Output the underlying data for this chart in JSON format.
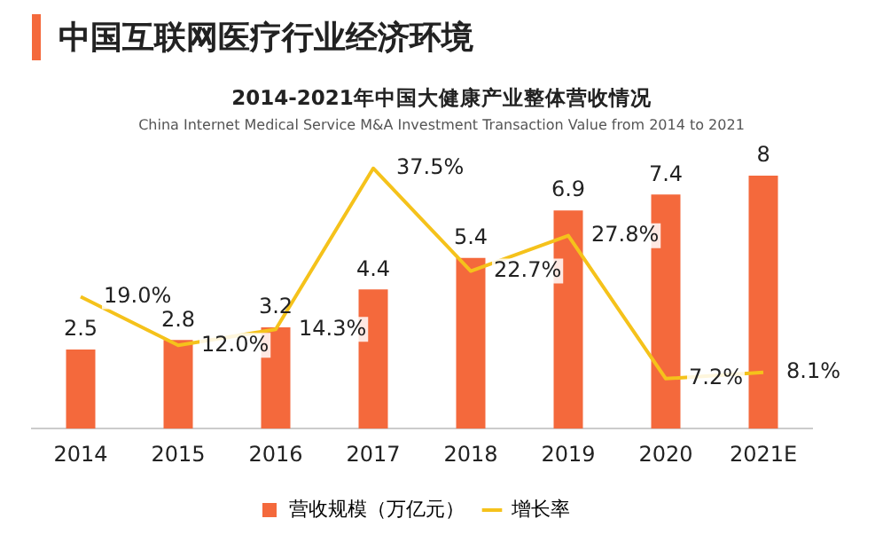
{
  "chart_data": {
    "type": "bar",
    "title": "中国互联网医疗行业经济环境",
    "subtitle": "2014-2021年中国大健康产业整体营收情况",
    "annotations": [
      "China Internet Medical Service M&A Investment Transaction Value from 2014 to 2021"
    ],
    "categories": [
      "2014",
      "2015",
      "2016",
      "2017",
      "2018",
      "2019",
      "2020",
      "2021E"
    ],
    "series": [
      {
        "name": "营收规模（万亿元）",
        "color": "#f4693c",
        "values": [
          2.5,
          2.8,
          3.2,
          4.4,
          5.4,
          6.9,
          7.4,
          8
        ],
        "value_labels": [
          "2.5",
          "2.8",
          "3.2",
          "4.4",
          "5.4",
          "6.9",
          "7.4",
          "8"
        ]
      },
      {
        "name": "增长率",
        "type": "line",
        "axis": "y2",
        "color": "#f5c21b",
        "values": [
          19.0,
          12.0,
          14.3,
          37.5,
          22.7,
          27.8,
          7.2,
          8.1
        ],
        "value_labels": [
          "19.0%",
          "12.0%",
          "14.3%",
          "37.5%",
          "22.7%",
          "27.8%",
          "7.2%",
          "8.1%"
        ]
      }
    ],
    "tick_labels": "x",
    "grid": false,
    "legend": "bottom",
    "marker": "none"
  }
}
